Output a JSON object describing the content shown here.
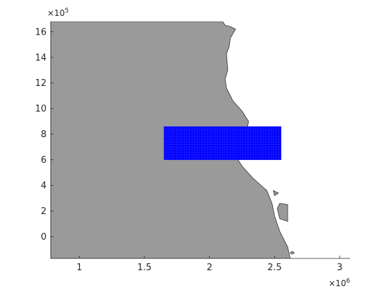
{
  "chart_data": {
    "type": "map",
    "title": "",
    "xlabel": "",
    "ylabel": "",
    "x_scale_label": "×10",
    "x_scale_exp": "6",
    "y_scale_label": "×10",
    "y_scale_exp": "5",
    "xlim": [
      0.78,
      3.08
    ],
    "ylim": [
      -1.7,
      16.8
    ],
    "x_ticks": [
      1,
      1.5,
      2,
      2.5,
      3
    ],
    "x_tick_labels": [
      "1",
      "1.5",
      "2",
      "2.5",
      "3"
    ],
    "y_ticks": [
      0,
      2,
      4,
      6,
      8,
      10,
      12,
      14,
      16
    ],
    "y_tick_labels": [
      "0",
      "2",
      "4",
      "6",
      "8",
      "10",
      "12",
      "14",
      "16"
    ],
    "grid": false,
    "legend": "none",
    "land": {
      "color": "#9a9a9a",
      "edge_color": "#303030",
      "coast": [
        [
          2.1,
          16.8
        ],
        [
          2.12,
          16.5
        ],
        [
          2.16,
          16.4
        ],
        [
          2.2,
          16.2
        ],
        [
          2.16,
          15.5
        ],
        [
          2.15,
          14.8
        ],
        [
          2.13,
          14.3
        ],
        [
          2.14,
          13.0
        ],
        [
          2.12,
          12.3
        ],
        [
          2.13,
          11.6
        ],
        [
          2.18,
          10.6
        ],
        [
          2.25,
          9.8
        ],
        [
          2.3,
          9.0
        ],
        [
          2.28,
          8.0
        ],
        [
          2.24,
          7.0
        ],
        [
          2.2,
          6.3
        ],
        [
          2.25,
          5.5
        ],
        [
          2.33,
          4.6
        ],
        [
          2.44,
          3.6
        ],
        [
          2.48,
          2.6
        ],
        [
          2.5,
          1.6
        ],
        [
          2.54,
          0.4
        ],
        [
          2.6,
          -0.8
        ],
        [
          2.62,
          -1.7
        ]
      ],
      "islands": [
        [
          [
            2.62,
            -1.25
          ],
          [
            2.64,
            -1.15
          ],
          [
            2.65,
            -1.3
          ],
          [
            2.63,
            -1.35
          ]
        ],
        [
          [
            2.54,
            2.6
          ],
          [
            2.6,
            2.5
          ],
          [
            2.6,
            1.2
          ],
          [
            2.54,
            1.4
          ],
          [
            2.52,
            2.2
          ]
        ],
        [
          [
            2.49,
            3.6
          ],
          [
            2.53,
            3.4
          ],
          [
            2.5,
            3.2
          ]
        ]
      ]
    },
    "grid_region": {
      "color": "#0000ff",
      "x": [
        1.65,
        2.55
      ],
      "y": [
        6.0,
        8.6
      ],
      "nx": 46,
      "ny": 13
    }
  }
}
